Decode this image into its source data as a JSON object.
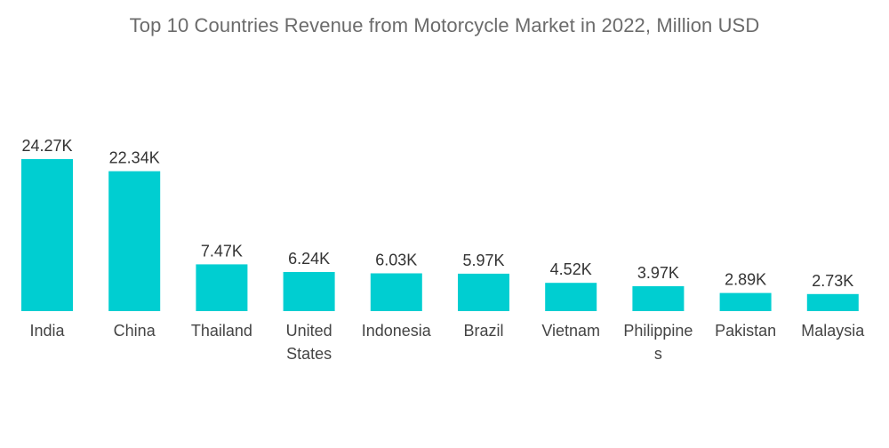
{
  "chart_data": {
    "type": "bar",
    "title": "Top 10 Countries Revenue from Motorcycle Market in 2022, Million USD",
    "xlabel": "",
    "ylabel": "",
    "ylim": [
      0,
      24.27
    ],
    "grid": false,
    "legend": "none",
    "bar_color": "#00CED1",
    "categories": [
      [
        "India"
      ],
      [
        "China"
      ],
      [
        "Thailand"
      ],
      [
        "United",
        "States"
      ],
      [
        "Indonesia"
      ],
      [
        "Brazil"
      ],
      [
        "Vietnam"
      ],
      [
        "Philippine",
        "s"
      ],
      [
        "Pakistan"
      ],
      [
        "Malaysia"
      ]
    ],
    "values": [
      24.27,
      22.34,
      7.47,
      6.24,
      6.03,
      5.97,
      4.52,
      3.97,
      2.89,
      2.73
    ],
    "value_labels": [
      "24.27K",
      "22.34K",
      "7.47K",
      "6.24K",
      "6.03K",
      "5.97K",
      "4.52K",
      "3.97K",
      "2.89K",
      "2.73K"
    ]
  }
}
